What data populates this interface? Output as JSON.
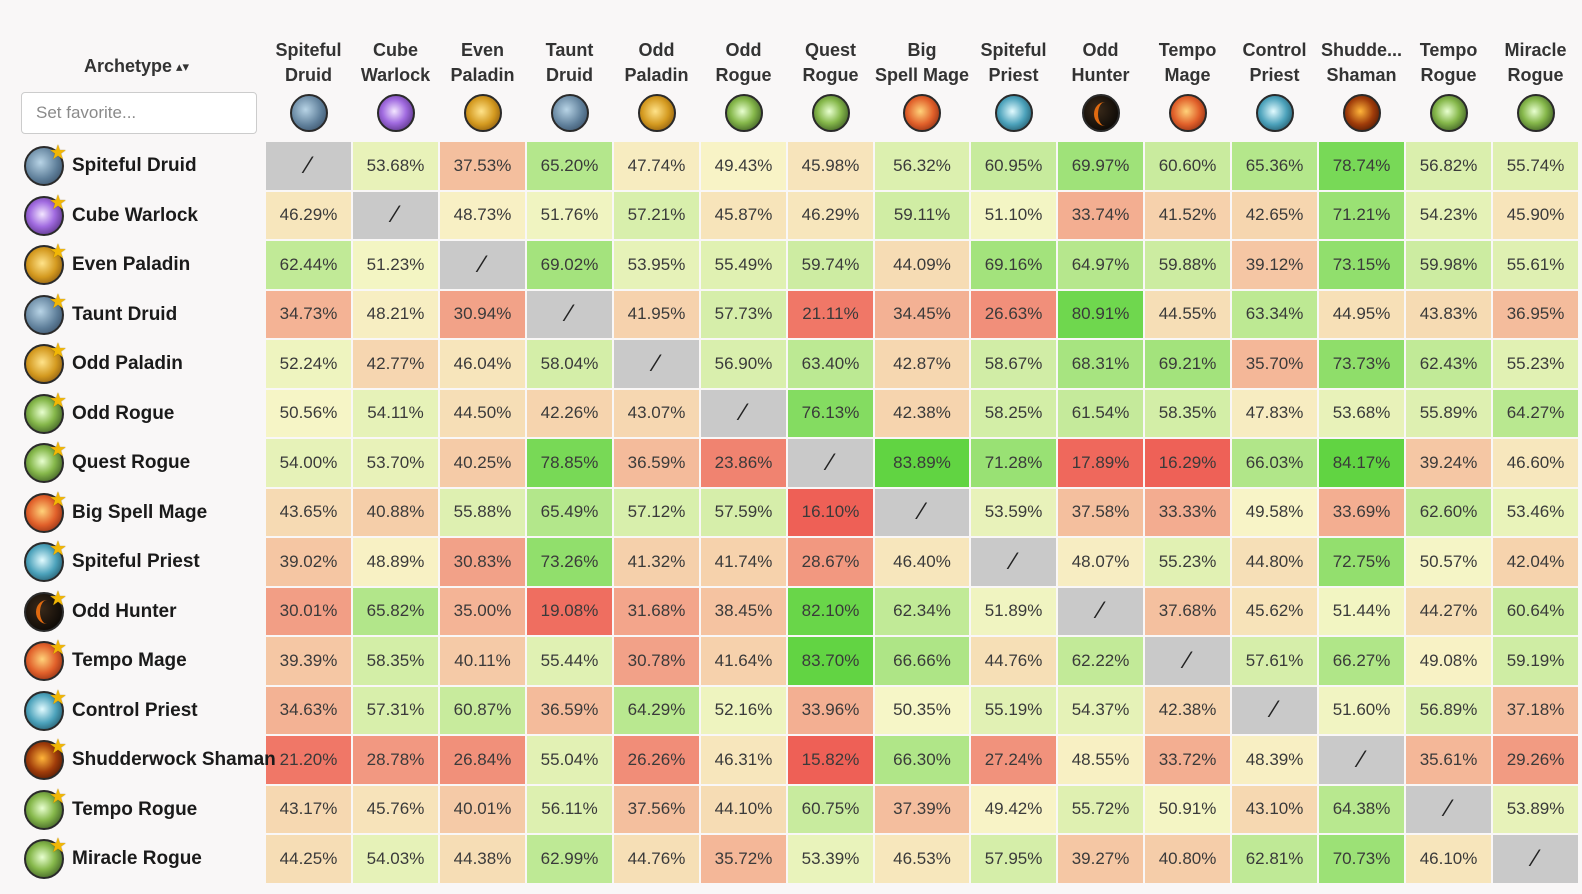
{
  "header": {
    "archetype_label": "Archetype",
    "sort_icon": "sort-up-down-icon",
    "favorite_placeholder": "Set favorite..."
  },
  "self_mark": "⁄",
  "columns": [
    {
      "label": "Spiteful Druid",
      "icon": "druid"
    },
    {
      "label": "Cube Warlock",
      "icon": "warlock"
    },
    {
      "label": "Even Paladin",
      "icon": "paladin"
    },
    {
      "label": "Taunt Druid",
      "icon": "druid"
    },
    {
      "label": "Odd Paladin",
      "icon": "paladin"
    },
    {
      "label": "Odd Rogue",
      "icon": "rogue"
    },
    {
      "label": "Quest Rogue",
      "icon": "rogue"
    },
    {
      "label": "Big Spell Mage",
      "icon": "mage"
    },
    {
      "label": "Spiteful Priest",
      "icon": "priest"
    },
    {
      "label": "Odd Hunter",
      "icon": "hunter"
    },
    {
      "label": "Tempo Mage",
      "icon": "mage"
    },
    {
      "label": "Control Priest",
      "icon": "priest"
    },
    {
      "label": "Shudde... Shaman",
      "icon": "shaman"
    },
    {
      "label": "Tempo Rogue",
      "icon": "rogue"
    },
    {
      "label": "Miracle Rogue",
      "icon": "rogue"
    }
  ],
  "rows": [
    {
      "label": "Spiteful Druid",
      "icon": "druid",
      "cells": [
        null,
        "53.68%",
        "37.53%",
        "65.20%",
        "47.74%",
        "49.43%",
        "45.98%",
        "56.32%",
        "60.95%",
        "69.97%",
        "60.60%",
        "65.36%",
        "78.74%",
        "56.82%",
        "55.74%"
      ]
    },
    {
      "label": "Cube Warlock",
      "icon": "warlock",
      "cells": [
        "46.29%",
        null,
        "48.73%",
        "51.76%",
        "57.21%",
        "45.87%",
        "46.29%",
        "59.11%",
        "51.10%",
        "33.74%",
        "41.52%",
        "42.65%",
        "71.21%",
        "54.23%",
        "45.90%"
      ]
    },
    {
      "label": "Even Paladin",
      "icon": "paladin",
      "cells": [
        "62.44%",
        "51.23%",
        null,
        "69.02%",
        "53.95%",
        "55.49%",
        "59.74%",
        "44.09%",
        "69.16%",
        "64.97%",
        "59.88%",
        "39.12%",
        "73.15%",
        "59.98%",
        "55.61%"
      ]
    },
    {
      "label": "Taunt Druid",
      "icon": "druid",
      "cells": [
        "34.73%",
        "48.21%",
        "30.94%",
        null,
        "41.95%",
        "57.73%",
        "21.11%",
        "34.45%",
        "26.63%",
        "80.91%",
        "44.55%",
        "63.34%",
        "44.95%",
        "43.83%",
        "36.95%"
      ]
    },
    {
      "label": "Odd Paladin",
      "icon": "paladin",
      "cells": [
        "52.24%",
        "42.77%",
        "46.04%",
        "58.04%",
        null,
        "56.90%",
        "63.40%",
        "42.87%",
        "58.67%",
        "68.31%",
        "69.21%",
        "35.70%",
        "73.73%",
        "62.43%",
        "55.23%"
      ]
    },
    {
      "label": "Odd Rogue",
      "icon": "rogue",
      "cells": [
        "50.56%",
        "54.11%",
        "44.50%",
        "42.26%",
        "43.07%",
        null,
        "76.13%",
        "42.38%",
        "58.25%",
        "61.54%",
        "58.35%",
        "47.83%",
        "53.68%",
        "55.89%",
        "64.27%"
      ]
    },
    {
      "label": "Quest Rogue",
      "icon": "rogue",
      "cells": [
        "54.00%",
        "53.70%",
        "40.25%",
        "78.85%",
        "36.59%",
        "23.86%",
        null,
        "83.89%",
        "71.28%",
        "17.89%",
        "16.29%",
        "66.03%",
        "84.17%",
        "39.24%",
        "46.60%"
      ]
    },
    {
      "label": "Big Spell Mage",
      "icon": "mage",
      "cells": [
        "43.65%",
        "40.88%",
        "55.88%",
        "65.49%",
        "57.12%",
        "57.59%",
        "16.10%",
        null,
        "53.59%",
        "37.58%",
        "33.33%",
        "49.58%",
        "33.69%",
        "62.60%",
        "53.46%"
      ]
    },
    {
      "label": "Spiteful Priest",
      "icon": "priest",
      "cells": [
        "39.02%",
        "48.89%",
        "30.83%",
        "73.26%",
        "41.32%",
        "41.74%",
        "28.67%",
        "46.40%",
        null,
        "48.07%",
        "55.23%",
        "44.80%",
        "72.75%",
        "50.57%",
        "42.04%"
      ]
    },
    {
      "label": "Odd Hunter",
      "icon": "hunter",
      "cells": [
        "30.01%",
        "65.82%",
        "35.00%",
        "19.08%",
        "31.68%",
        "38.45%",
        "82.10%",
        "62.34%",
        "51.89%",
        null,
        "37.68%",
        "45.62%",
        "51.44%",
        "44.27%",
        "60.64%"
      ]
    },
    {
      "label": "Tempo Mage",
      "icon": "mage",
      "cells": [
        "39.39%",
        "58.35%",
        "40.11%",
        "55.44%",
        "30.78%",
        "41.64%",
        "83.70%",
        "66.66%",
        "44.76%",
        "62.22%",
        null,
        "57.61%",
        "66.27%",
        "49.08%",
        "59.19%"
      ]
    },
    {
      "label": "Control Priest",
      "icon": "priest",
      "cells": [
        "34.63%",
        "57.31%",
        "60.87%",
        "36.59%",
        "64.29%",
        "52.16%",
        "33.96%",
        "50.35%",
        "55.19%",
        "54.37%",
        "42.38%",
        null,
        "51.60%",
        "56.89%",
        "37.18%"
      ]
    },
    {
      "label": "Shudderwock Shaman",
      "icon": "shaman",
      "cells": [
        "21.20%",
        "28.78%",
        "26.84%",
        "55.04%",
        "26.26%",
        "46.31%",
        "15.82%",
        "66.30%",
        "27.24%",
        "48.55%",
        "33.72%",
        "48.39%",
        null,
        "35.61%",
        "29.26%"
      ]
    },
    {
      "label": "Tempo Rogue",
      "icon": "rogue",
      "cells": [
        "43.17%",
        "45.76%",
        "40.01%",
        "56.11%",
        "37.56%",
        "44.10%",
        "60.75%",
        "37.39%",
        "49.42%",
        "55.72%",
        "50.91%",
        "43.10%",
        "64.38%",
        null,
        "53.89%"
      ]
    },
    {
      "label": "Miracle Rogue",
      "icon": "rogue",
      "cells": [
        "44.25%",
        "54.03%",
        "44.38%",
        "62.99%",
        "44.76%",
        "35.72%",
        "53.39%",
        "46.53%",
        "57.95%",
        "39.27%",
        "40.80%",
        "62.81%",
        "70.73%",
        "46.10%",
        null
      ]
    }
  ]
}
